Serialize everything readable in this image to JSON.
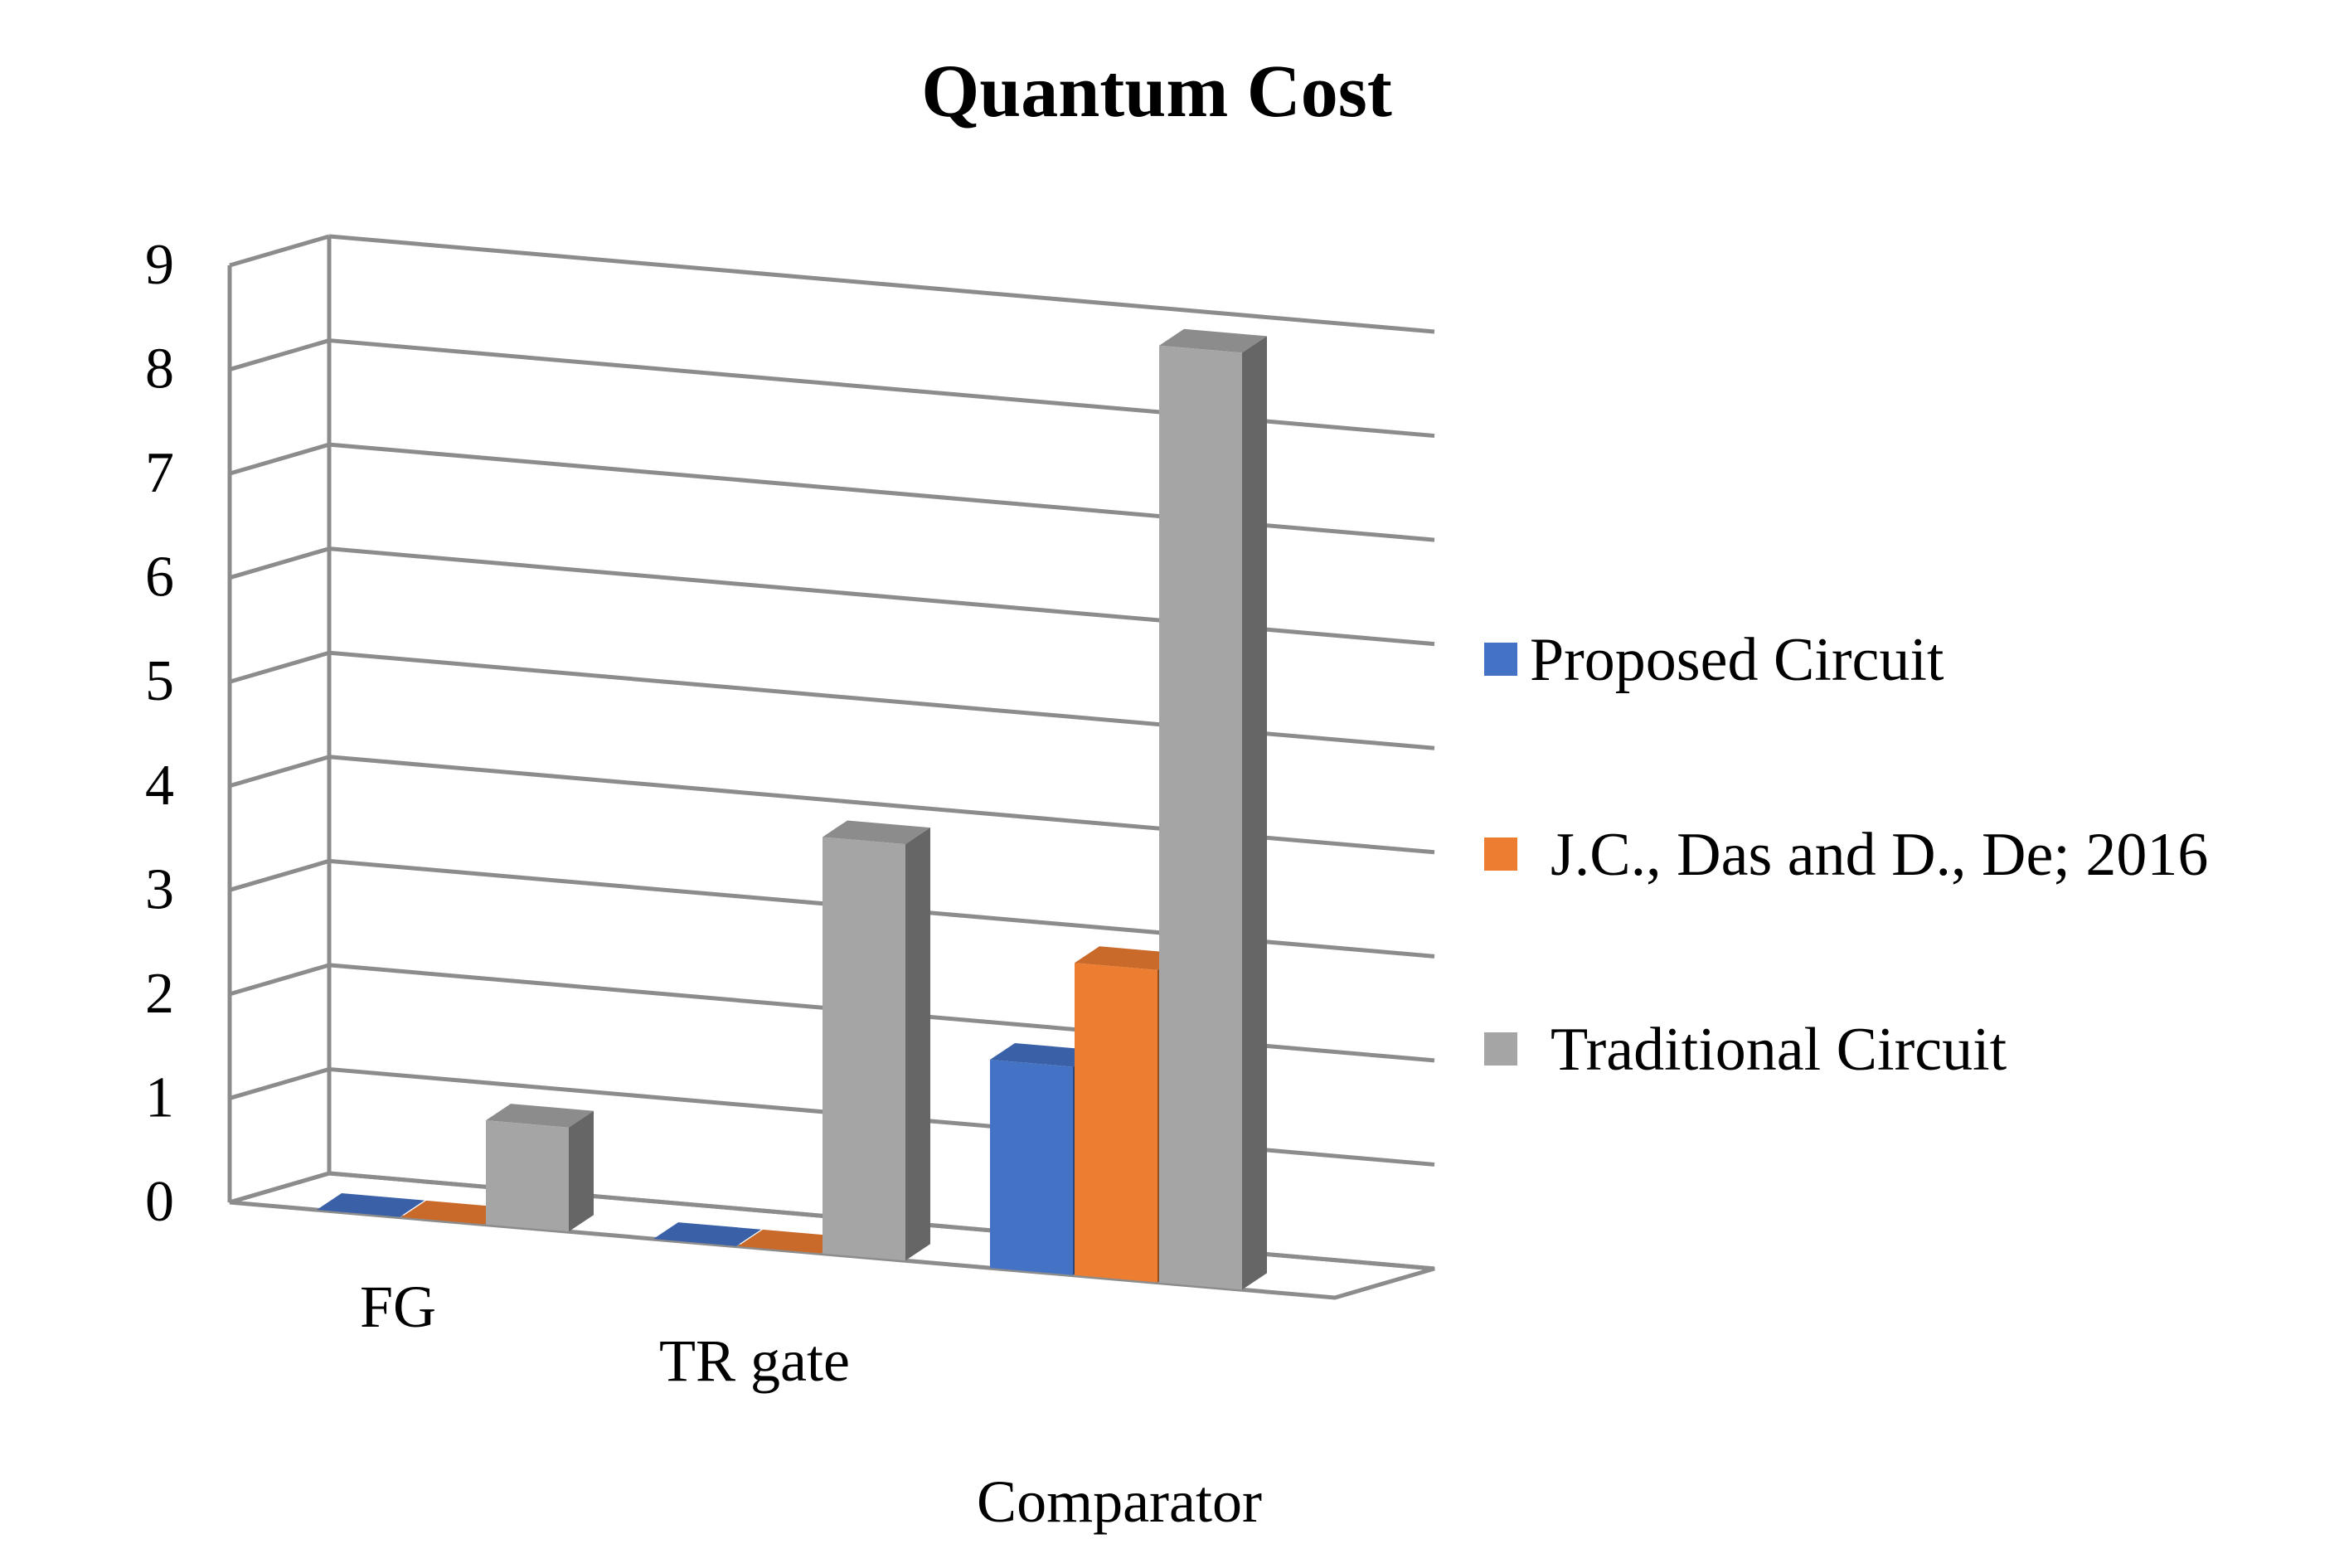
{
  "chart_data": {
    "type": "bar",
    "style": "3d-clustered-column",
    "title": "Quantum Cost",
    "xlabel": "",
    "ylabel": "",
    "ylim": [
      0,
      9
    ],
    "yticks": [
      "0",
      "1",
      "2",
      "3",
      "4",
      "5",
      "6",
      "7",
      "8",
      "9"
    ],
    "categories": [
      "FG",
      "TR gate",
      "Comparator"
    ],
    "series": [
      {
        "name": "Proposed Circuit",
        "color": "#4472C4",
        "values": [
          0,
          0,
          2
        ]
      },
      {
        "name": "J.C., Das and D., De; 2016",
        "color": "#ED7D31",
        "values": [
          0,
          0,
          3
        ]
      },
      {
        "name": "Traditional Circuit",
        "color": "#A5A5A5",
        "values": [
          1,
          4,
          9
        ]
      }
    ],
    "grid": true,
    "legend_position": "right"
  }
}
